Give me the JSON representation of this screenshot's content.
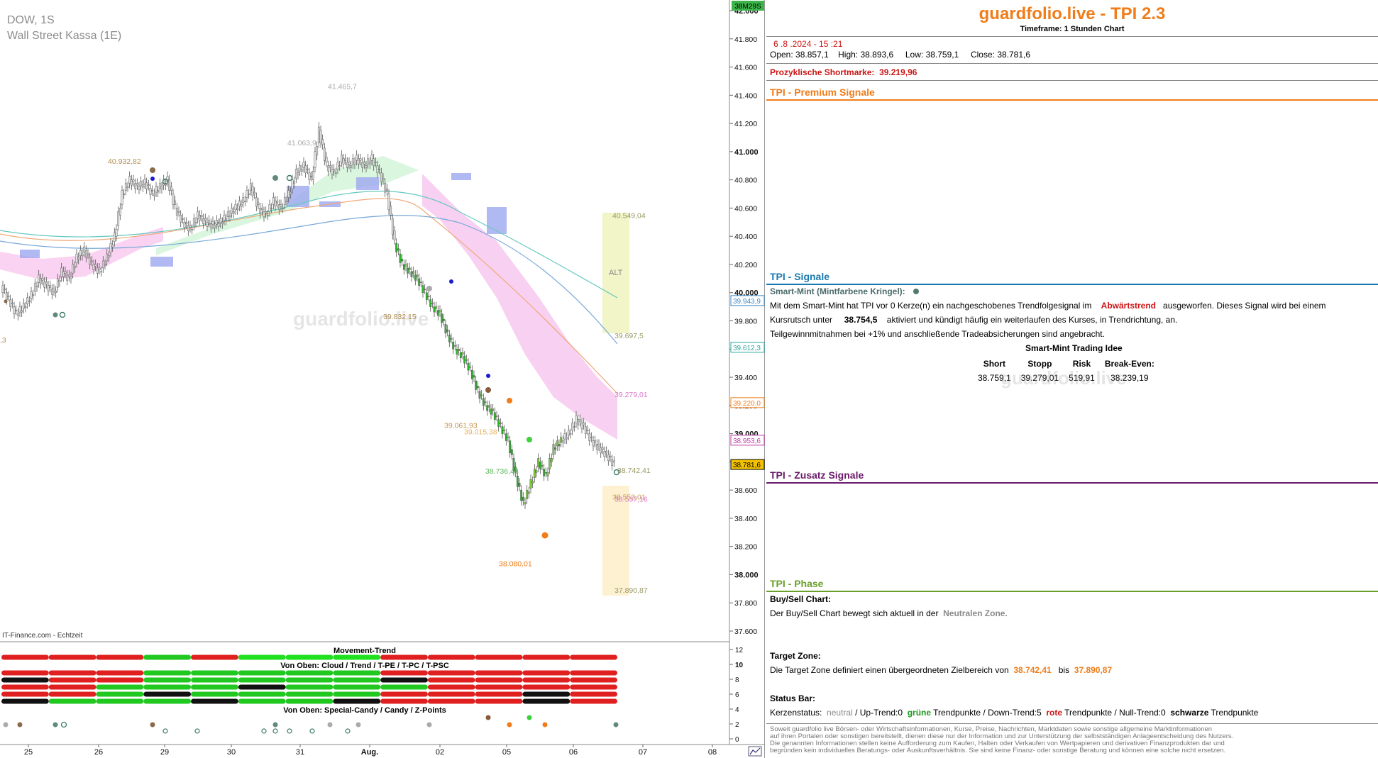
{
  "chart": {
    "symbol": "DOW, 1S",
    "subtitle": "Wall Street Kassa (1E)",
    "source": "IT-Finance.com - Echtzeit",
    "watermark": "guardfolio.live"
  },
  "chart_data": {
    "type": "candlestick",
    "ylim": [
      37600,
      42000
    ],
    "y_ticks": [
      "42.000",
      "41.800",
      "41.600",
      "41.400",
      "41.200",
      "41.000",
      "40.800",
      "40.600",
      "40.400",
      "40.200",
      "40.000",
      "39.800",
      "39.600",
      "39.400",
      "39.200",
      "39.000",
      "38.800",
      "38.600",
      "38.400",
      "38.200",
      "38.000",
      "37.800",
      "37.600"
    ],
    "x_ticks": [
      "25",
      "26",
      "29",
      "30",
      "31",
      "Aug.",
      "02",
      "05",
      "06",
      "07",
      "08"
    ],
    "countdown": "38M29S",
    "price_tags": [
      {
        "label": "39.943,9",
        "value": 39943.9,
        "color": "#3a8ac8"
      },
      {
        "label": "39.612,3",
        "value": 39612.3,
        "color": "#2aa7a0"
      },
      {
        "label": "39.220,0",
        "value": 39220.0,
        "color": "#f07d1a"
      },
      {
        "label": "38.953,6",
        "value": 38953.6,
        "color": "#c23aa8"
      },
      {
        "label": "38.781,6",
        "value": 38781.6,
        "color": "#000000",
        "fill": "#f2c200"
      }
    ],
    "annotations": [
      {
        "label": "41.465,7",
        "value": 41465.7,
        "color": "#aaaaaa"
      },
      {
        "label": "41.063,9",
        "value": 41063.9,
        "color": "#aaaaaa"
      },
      {
        "label": "40.932,82",
        "value": 40932.82,
        "color": "#b48c50"
      },
      {
        "label": "39.832,15",
        "value": 39832.15,
        "color": "#b48c50"
      },
      {
        "label": "39.061,93",
        "value": 39061.93,
        "color": "#c89650"
      },
      {
        "label": "39.015,38",
        "value": 39015.38,
        "color": "#e6b464"
      },
      {
        "label": "38.736,43",
        "value": 38736.43,
        "color": "#5ab45a"
      },
      {
        "label": "38.080,01",
        "value": 38080.01,
        "color": "#f07d1a"
      },
      {
        "label": "40.549,04",
        "value": 40549.04,
        "color": "#999966"
      },
      {
        "label": "39.697,5",
        "value": 39697.5,
        "color": "#999966"
      },
      {
        "label": "39.279,01",
        "value": 39279.01,
        "color": "#dc78c8"
      },
      {
        "label": "38.742,41",
        "value": 38742.41,
        "color": "#999966"
      },
      {
        "label": "38.553,01",
        "value": 38553.01,
        "color": "#c8a050"
      },
      {
        "label": "38.537,16",
        "value": 38537.16,
        "color": "#dc78c8"
      },
      {
        "label": "37.890,87",
        "value": 37890.87,
        "color": "#999966"
      }
    ],
    "zone_label": "ALT",
    "left_edge_label": ",3",
    "close_path": [
      40050,
      39950,
      39850,
      39900,
      39980,
      40100,
      40050,
      40000,
      40150,
      40100,
      40250,
      40300,
      40200,
      40150,
      40250,
      40400,
      40700,
      40800,
      40750,
      40780,
      40700,
      40750,
      40800,
      40600,
      40500,
      40450,
      40550,
      40500,
      40480,
      40500,
      40550,
      40600,
      40650,
      40750,
      40600,
      40550,
      40650,
      40600,
      40700,
      40850,
      40900,
      40800,
      41150,
      40900,
      40850,
      40950,
      40900,
      40950,
      40900,
      40950,
      40850,
      40700,
      40350,
      40200,
      40150,
      40100,
      40000,
      39900,
      39850,
      39700,
      39600,
      39550,
      39450,
      39300,
      39200,
      39150,
      39050,
      38950,
      38700,
      38500,
      38650,
      38800,
      38700,
      38900,
      38950,
      39000,
      39100,
      39050,
      38950,
      38900,
      38850,
      38781.6
    ]
  },
  "indicators": {
    "movement_trend": "Movement-Trend",
    "cloud_label": "Von Oben: Cloud / Trend / T-PE / T-PC / T-PSC",
    "special_label": "Von Oben: Special-Candy / Candy / Z-Points",
    "axis_ticks": [
      "12",
      "10",
      "8",
      "6",
      "4",
      "2",
      "0"
    ]
  },
  "panel": {
    "title": "guardfolio.live - TPI 2.3",
    "timeframe": "Timeframe: 1 Stunden Chart",
    "datetime": "6 .8 .2024  - 15 :21",
    "open_label": "Open:",
    "open": "38.857,1",
    "high_label": "High:",
    "high": "38.893,6",
    "low_label": "Low:",
    "low": "38.759,1",
    "close_label": "Close:",
    "close": "38.781,6",
    "shortmarke_label": "Prozyklische Shortmarke:",
    "shortmarke": "39.219,96",
    "premium_head": "TPI - Premium Signale",
    "signale_head": "TPI - Signale",
    "smart_mint_head": "Smart-Mint (Mintfarbene Kringel):",
    "sm_line1_a": "Mit dem Smart-Mint hat TPI vor 0  Kerze(n) ein nachgeschobenes Trendfolgesignal im",
    "sm_line1_red": "Abwärtstrend",
    "sm_line1_b": "ausgeworfen. Dieses Signal wird bei einem",
    "sm_line2_a": "Kursrutsch unter",
    "sm_line2_val": "38.754,5",
    "sm_line2_b": "aktiviert und kündigt häufig ein weiterlaufen des Kurses, in Trendrichtung, an.",
    "sm_line3": "Teilgewinnmitnahmen bei +1% und anschließende Tradeabsicherungen sind angebracht.",
    "idea_head": "Smart-Mint Trading Idee",
    "idea_cols": [
      "Short",
      "Stopp",
      "Risk",
      "Break-Even:"
    ],
    "idea_vals": [
      "38.759,1",
      "39.279,01",
      "519,91",
      "38.239,19"
    ],
    "panel_watermark": "guardfolio.live",
    "zusatz_head": "TPI - Zusatz Signale",
    "phase_head": "TPI - Phase",
    "buysell_head": "Buy/Sell Chart:",
    "buysell_a": "Der Buy/Sell Chart bewegt sich aktuell in der",
    "buysell_zone": "Neutralen Zone.",
    "target_head": "Target Zone:",
    "target_a": "Die Target Zone definiert einen übergeordneten Zielbereich von",
    "target_from": "38.742,41",
    "target_bis": "bis",
    "target_to": "37.890,87",
    "status_head": "Status Bar:",
    "status_a": "Kerzenstatus:",
    "status_neutral": "neutral",
    "status_b": " / Up-Trend:0",
    "status_gruene": "grüne",
    "status_c": "Trendpunkte  / Down-Trend:5",
    "status_rote": "rote",
    "status_d": "Trendpunkte  / Null-Trend:0",
    "status_schwarze": "schwarze",
    "status_e": "Trendpunkte",
    "disclaimer": [
      "Soweit guardfolio live Börsen- oder Wirtschaftsinformationen, Kurse, Preise, Nachrichten, Marktdaten sowie sonstige allgemeine Marktinformationen",
      "auf ihren Portalen oder sonstigen bereitstellt, dienen diese nur der Information und zur Unterstützung der selbstständigen Anlageentscheidung des Nutzers.",
      "Die genannten Informationen stellen keine Aufforderung zum Kaufen, Halten oder Verkaufen von Wertpapieren und derivativen Finanzprodukten dar und",
      "begründen kein individuelles Beratungs- oder Auskunftsverhältnis. Sie sind keine Finanz- oder sonstige Beratung und können eine solche nicht ersetzen."
    ]
  }
}
